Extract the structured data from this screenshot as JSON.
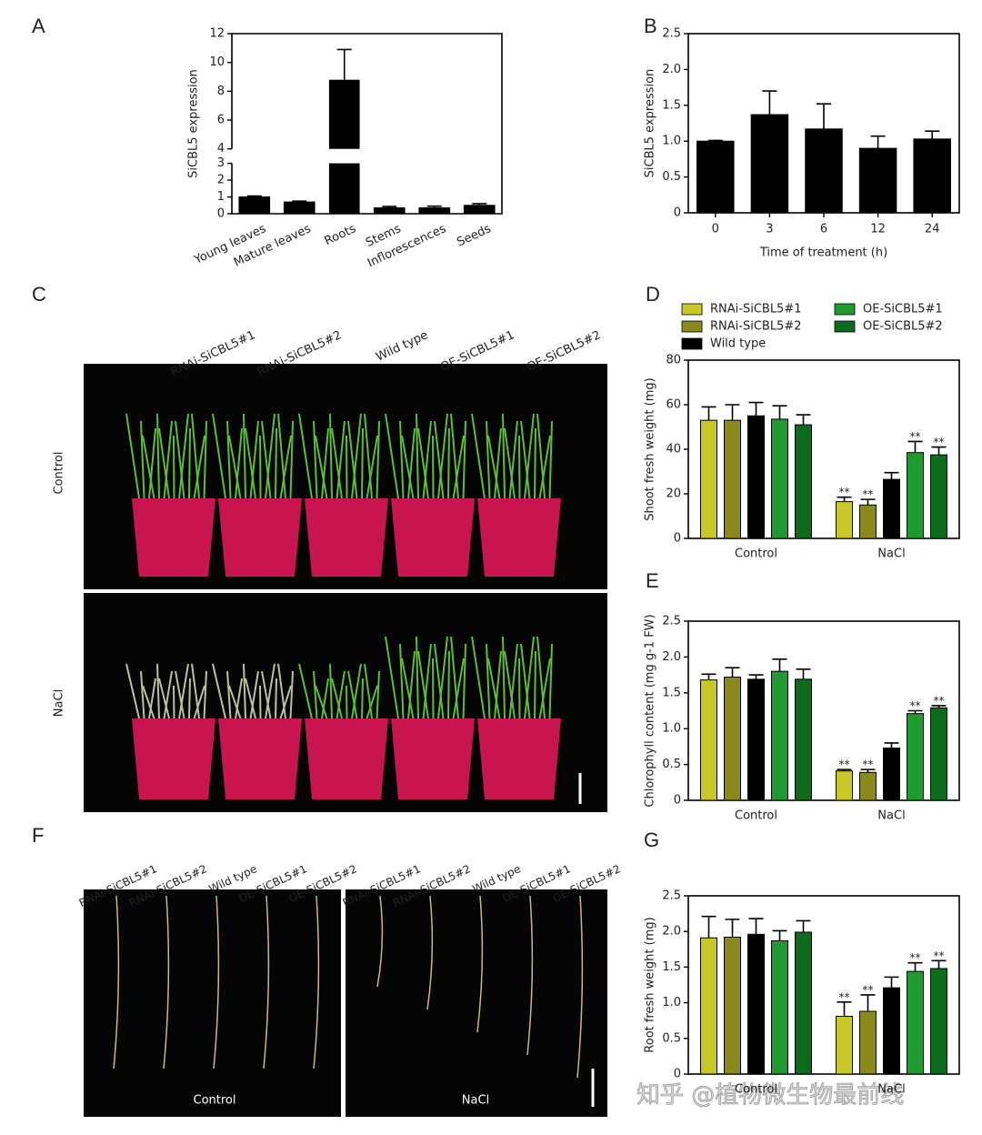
{
  "chart_data": [
    {
      "type": "bar",
      "panel": "A",
      "ylabel": "SiCBL5 expression",
      "categories": [
        "Young leaves",
        "Mature leaves",
        "Roots",
        "Stems",
        "Inflorescences",
        "Seeds"
      ],
      "values": [
        1.0,
        0.7,
        8.8,
        0.35,
        0.35,
        0.5
      ],
      "errors": [
        0.05,
        0.05,
        2.1,
        0.08,
        0.1,
        0.1
      ],
      "color": "#000000",
      "ylim": [
        0,
        12
      ],
      "ybreak": [
        3,
        4
      ],
      "yticks": [
        0,
        1,
        2,
        3,
        4,
        6,
        8,
        10,
        12
      ],
      "rotate_x_labels": true
    },
    {
      "type": "bar",
      "panel": "B",
      "ylabel": "SiCBL5 expression",
      "xlabel": "Time of treatment (h)",
      "categories": [
        "0",
        "3",
        "6",
        "12",
        "24"
      ],
      "values": [
        1.0,
        1.37,
        1.17,
        0.9,
        1.03
      ],
      "errors": [
        0.01,
        0.33,
        0.35,
        0.17,
        0.11
      ],
      "color": "#000000",
      "ylim": [
        0,
        2.5
      ],
      "yticks": [
        0,
        0.5,
        {
          "value": 1,
          "label": "1.0"
        },
        1.5,
        {
          "value": 2,
          "label": "2.0"
        },
        2.5
      ]
    },
    {
      "type": "grouped-bar",
      "panel": "D",
      "ylabel": "Shoot fresh weight (mg)",
      "legend": true,
      "categories": [
        "Control",
        "NaCl"
      ],
      "ylim": [
        0,
        80
      ],
      "yticks": [
        0,
        20,
        40,
        60,
        80
      ],
      "series": [
        {
          "name": "RNAi-SiCBL5#1",
          "color": "#c8c828",
          "values": [
            53,
            16.5
          ],
          "errors": [
            6,
            2
          ],
          "significance": [
            null,
            "**"
          ]
        },
        {
          "name": "RNAi-SiCBL5#2",
          "color": "#8a8a1c",
          "values": [
            53,
            15
          ],
          "errors": [
            7,
            2.5
          ],
          "significance": [
            null,
            "**"
          ]
        },
        {
          "name": "Wild type",
          "color": "#000000",
          "values": [
            55,
            26.5
          ],
          "errors": [
            6,
            3
          ],
          "significance": [
            null,
            null
          ]
        },
        {
          "name": "OE-SiCBL5#1",
          "color": "#1e9a2e",
          "values": [
            53.5,
            38.5
          ],
          "errors": [
            6,
            5
          ],
          "significance": [
            null,
            "**"
          ]
        },
        {
          "name": "OE-SiCBL5#2",
          "color": "#0d6b1e",
          "values": [
            51,
            37.5
          ],
          "errors": [
            4.5,
            3.5
          ],
          "significance": [
            null,
            "**"
          ]
        }
      ]
    },
    {
      "type": "grouped-bar",
      "panel": "E",
      "ylabel": "Chlorophyll content (mg g-1 FW)",
      "categories": [
        "Control",
        "NaCl"
      ],
      "ylim": [
        0,
        2.5
      ],
      "yticks": [
        0,
        0.5,
        {
          "value": 1,
          "label": "1.0"
        },
        1.5,
        {
          "value": 2,
          "label": "2.0"
        },
        2.5
      ],
      "series": [
        {
          "color": "#c8c828",
          "values": [
            1.68,
            0.41
          ],
          "errors": [
            0.08,
            0.02
          ],
          "significance": [
            null,
            "**"
          ]
        },
        {
          "color": "#8a8a1c",
          "values": [
            1.72,
            0.39
          ],
          "errors": [
            0.13,
            0.04
          ],
          "significance": [
            null,
            "**"
          ]
        },
        {
          "color": "#000000",
          "values": [
            1.69,
            0.73
          ],
          "errors": [
            0.06,
            0.07
          ],
          "significance": [
            null,
            null
          ]
        },
        {
          "color": "#1e9a2e",
          "values": [
            1.8,
            1.21
          ],
          "errors": [
            0.17,
            0.04
          ],
          "significance": [
            null,
            "**"
          ]
        },
        {
          "color": "#0d6b1e",
          "values": [
            1.69,
            1.29
          ],
          "errors": [
            0.14,
            0.03
          ],
          "significance": [
            null,
            "**"
          ]
        }
      ]
    },
    {
      "type": "grouped-bar",
      "panel": "G",
      "ylabel": "Root fresh weight (mg)",
      "categories": [
        "Control",
        "NaCl"
      ],
      "ylim": [
        0,
        2.5
      ],
      "yticks": [
        0,
        0.5,
        {
          "value": 1,
          "label": "1.0"
        },
        1.5,
        {
          "value": 2,
          "label": "2.0"
        },
        2.5
      ],
      "series": [
        {
          "color": "#c8c828",
          "values": [
            1.91,
            0.81
          ],
          "errors": [
            0.3,
            0.2
          ],
          "significance": [
            null,
            "**"
          ]
        },
        {
          "color": "#8a8a1c",
          "values": [
            1.92,
            0.88
          ],
          "errors": [
            0.25,
            0.23
          ],
          "significance": [
            null,
            "**"
          ]
        },
        {
          "color": "#000000",
          "values": [
            1.96,
            1.21
          ],
          "errors": [
            0.22,
            0.15
          ],
          "significance": [
            null,
            null
          ]
        },
        {
          "color": "#1e9a2e",
          "values": [
            1.87,
            1.44
          ],
          "errors": [
            0.14,
            0.12
          ],
          "significance": [
            null,
            "**"
          ]
        },
        {
          "color": "#0d6b1e",
          "values": [
            1.99,
            1.48
          ],
          "errors": [
            0.16,
            0.11
          ],
          "significance": [
            null,
            "**"
          ]
        }
      ]
    }
  ],
  "photos": [
    {
      "panel": "C",
      "columns": [
        "RNAi-SiCBL5#1",
        "RNAi-SiCBL5#2",
        "Wild type",
        "OE-SiCBL5#1",
        "OE-SiCBL5#2"
      ],
      "rows": [
        "Control",
        "NaCl"
      ]
    },
    {
      "panel": "F",
      "columns": [
        "RNAi-SiCBL5#1",
        "RNAi-SiCBL5#2",
        "Wild type",
        "OE-SiCBL5#1",
        "OE-SiCBL5#2",
        "RNAi-SiCBL5#1",
        "RNAi-SiCBL5#2",
        "Wild type",
        "OE-SiCBL5#1",
        "OE-SiCBL5#2"
      ],
      "captions": [
        "Control",
        "NaCl"
      ]
    }
  ],
  "watermark": "知乎 @植物微生物最前线"
}
